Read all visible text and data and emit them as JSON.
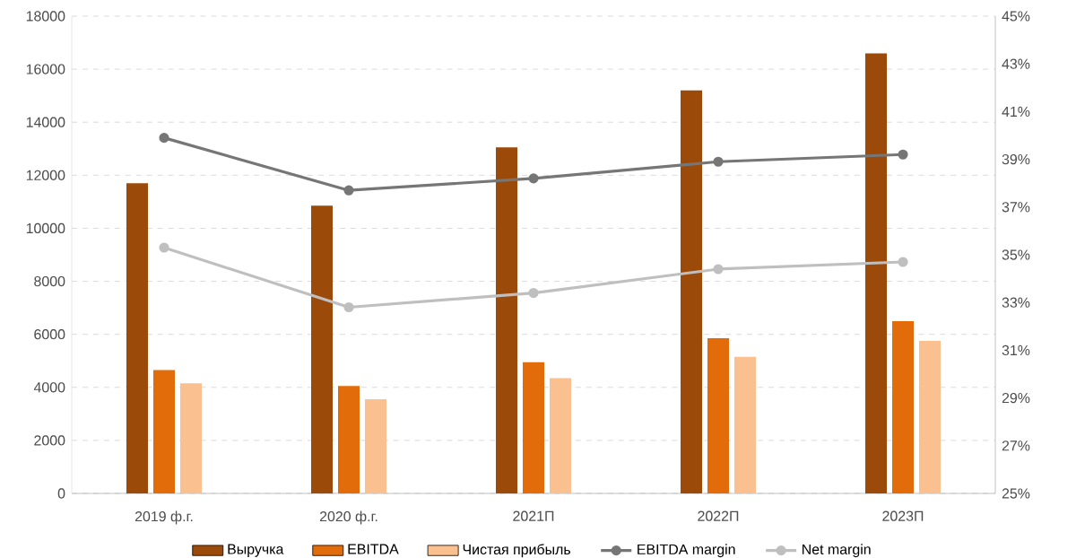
{
  "chart_data": {
    "type": "bar",
    "categories": [
      "2019 ф.г.",
      "2020 ф.г.",
      "2021П",
      "2022П",
      "2023П"
    ],
    "series": [
      {
        "name": "Выручка",
        "color": "#9c4a0a",
        "values": [
          11700,
          10850,
          13050,
          15200,
          16600
        ]
      },
      {
        "name": "EBITDA",
        "color": "#e36c0a",
        "values": [
          4650,
          4050,
          4950,
          5850,
          6500
        ]
      },
      {
        "name": "Чистая прибыль",
        "color": "#fac090",
        "values": [
          4150,
          3550,
          4350,
          5150,
          5750
        ]
      },
      {
        "name": "EBITDA margin",
        "type": "line",
        "axis": "y2",
        "color": "#767676",
        "values": [
          39.9,
          37.7,
          38.2,
          38.9,
          39.2
        ]
      },
      {
        "name": "Net margin",
        "type": "line",
        "axis": "y2",
        "color": "#bfbfbf",
        "values": [
          35.3,
          32.8,
          33.4,
          34.4,
          34.7
        ]
      }
    ],
    "ylim": [
      0,
      18000
    ],
    "yticks": [
      0,
      2000,
      4000,
      6000,
      8000,
      10000,
      12000,
      14000,
      16000,
      18000
    ],
    "y2lim": [
      25,
      45
    ],
    "y2ticks": [
      {
        "value": 25,
        "label": "25%"
      },
      {
        "value": 27,
        "label": "27%"
      },
      {
        "value": 29,
        "label": "29%"
      },
      {
        "value": 31,
        "label": "31%"
      },
      {
        "value": 33,
        "label": "33%"
      },
      {
        "value": 35,
        "label": "35%"
      },
      {
        "value": 37,
        "label": "37%"
      },
      {
        "value": 39,
        "label": "39%"
      },
      {
        "value": 41,
        "label": "41%"
      },
      {
        "value": 43,
        "label": "43%"
      },
      {
        "value": 45,
        "label": "45%"
      }
    ],
    "grid": "y",
    "legend": "bottom",
    "marker": "circle",
    "line_style": "solid"
  }
}
